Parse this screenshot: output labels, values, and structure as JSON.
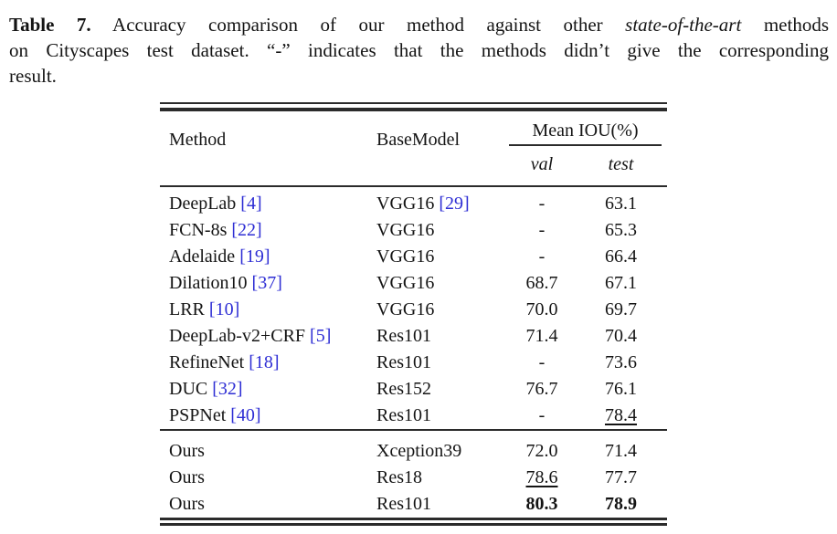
{
  "caption": {
    "label": "Table 7.",
    "line1_text": " Accuracy comparison of our method against other ",
    "line1_italic": "state-of-the-art",
    "line1_end": " methods",
    "line2": "on Cityscapes test dataset. “-” indicates that the methods didn’t give the corresponding",
    "line3": "result."
  },
  "colors": {
    "citation": "#2e2ed4",
    "text": "#141414",
    "rule": "#2b2b2b"
  },
  "table": {
    "headers": {
      "method": "Method",
      "base_model": "BaseModel",
      "mean_iou_group": "Mean IOU(%)",
      "sub_val": "val",
      "sub_test": "test"
    },
    "rows": [
      {
        "method": "DeepLab",
        "cite": "[4]",
        "base": "VGG16",
        "base_cite": "[29]",
        "val": "-",
        "test": "63.1"
      },
      {
        "method": "FCN-8s",
        "cite": "[22]",
        "base": "VGG16",
        "val": "-",
        "test": "65.3"
      },
      {
        "method": "Adelaide",
        "cite": "[19]",
        "base": "VGG16",
        "val": "-",
        "test": "66.4"
      },
      {
        "method": "Dilation10",
        "cite": "[37]",
        "base": "VGG16",
        "val": "68.7",
        "test": "67.1"
      },
      {
        "method": "LRR",
        "cite": "[10]",
        "base": "VGG16",
        "val": "70.0",
        "test": "69.7"
      },
      {
        "method": "DeepLab-v2+CRF",
        "cite": "[5]",
        "base": "Res101",
        "val": "71.4",
        "test": "70.4"
      },
      {
        "method": "RefineNet",
        "cite": "[18]",
        "base": "Res101",
        "val": "-",
        "test": "73.6"
      },
      {
        "method": "DUC",
        "cite": "[32]",
        "base": "Res152",
        "val": "76.7",
        "test": "76.1"
      },
      {
        "method": "PSPNet",
        "cite": "[40]",
        "base": "Res101",
        "val": "-",
        "test": "78.4"
      }
    ],
    "ours_rows": [
      {
        "method": "Ours",
        "base": "Xception39",
        "val": "72.0",
        "test": "71.4"
      },
      {
        "method": "Ours",
        "base": "Res18",
        "val": "78.6",
        "test": "77.7"
      },
      {
        "method": "Ours",
        "base": "Res101",
        "val": "80.3",
        "test": "78.9"
      }
    ]
  }
}
